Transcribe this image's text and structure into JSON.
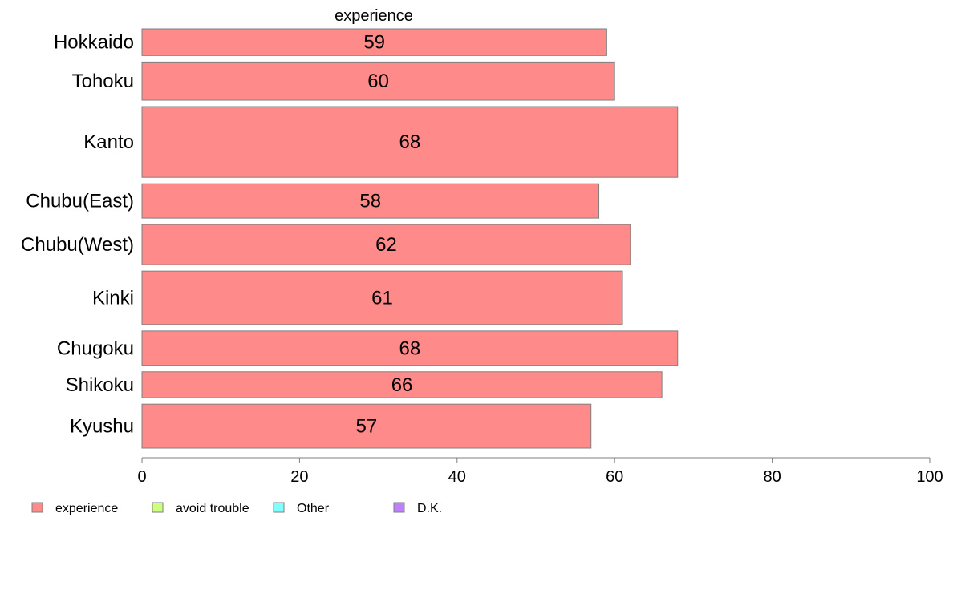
{
  "chart_data": {
    "type": "bar",
    "orientation": "horizontal",
    "title": "experience",
    "categories": [
      "Hokkaido",
      "Tohoku",
      "Kanto",
      "Chubu(East)",
      "Chubu(West)",
      "Kinki",
      "Chugoku",
      "Shikoku",
      "Kyushu"
    ],
    "series": [
      {
        "name": "experience",
        "values": [
          59,
          60,
          68,
          58,
          62,
          61,
          68,
          66,
          57
        ],
        "color": "#ff8a8a"
      }
    ],
    "category_weights": [
      0.7,
      1.0,
      1.85,
      0.9,
      1.05,
      1.4,
      0.9,
      0.68,
      1.15
    ],
    "data_labels": [
      "59",
      "60",
      "68",
      "58",
      "62",
      "61",
      "68",
      "66",
      "57"
    ],
    "xlim": [
      0,
      100
    ],
    "xticks": [
      0,
      20,
      40,
      60,
      80,
      100
    ],
    "xtick_labels": [
      "0",
      "20",
      "40",
      "60",
      "80",
      "100"
    ],
    "grid": false,
    "legend": {
      "placement": "bottom-left",
      "entries": [
        {
          "label": "experience",
          "color": "#ff8a8a"
        },
        {
          "label": "avoid trouble",
          "color": "#ccff80"
        },
        {
          "label": "Other",
          "color": "#80ffff"
        },
        {
          "label": "D.K.",
          "color": "#bf80ff"
        }
      ]
    }
  }
}
